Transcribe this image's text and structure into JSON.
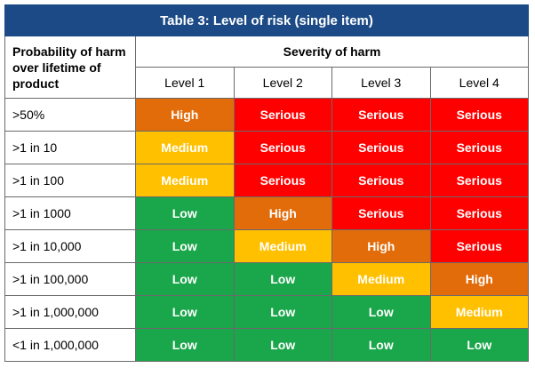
{
  "title": "Table 3: Level of risk (single item)",
  "corner_label": "Probability of harm over lifetime of product",
  "severity_header": "Severity of harm",
  "levels": [
    "Level 1",
    "Level 2",
    "Level 3",
    "Level 4"
  ],
  "colors": {
    "Low": "#1aa64a",
    "Medium": "#ffc000",
    "High": "#e26b0a",
    "Serious": "#ff0000",
    "title_bg": "#1b4a86"
  },
  "rows": [
    {
      "probability": ">50%",
      "cells": [
        "High",
        "Serious",
        "Serious",
        "Serious"
      ]
    },
    {
      "probability": ">1 in 10",
      "cells": [
        "Medium",
        "Serious",
        "Serious",
        "Serious"
      ]
    },
    {
      "probability": ">1 in 100",
      "cells": [
        "Medium",
        "Serious",
        "Serious",
        "Serious"
      ]
    },
    {
      "probability": ">1 in 1000",
      "cells": [
        "Low",
        "High",
        "Serious",
        "Serious"
      ]
    },
    {
      "probability": ">1 in 10,000",
      "cells": [
        "Low",
        "Medium",
        "High",
        "Serious"
      ]
    },
    {
      "probability": ">1 in 100,000",
      "cells": [
        "Low",
        "Low",
        "Medium",
        "High"
      ]
    },
    {
      "probability": ">1 in 1,000,000",
      "cells": [
        "Low",
        "Low",
        "Low",
        "Medium"
      ]
    },
    {
      "probability": "<1 in 1,000,000",
      "cells": [
        "Low",
        "Low",
        "Low",
        "Low"
      ]
    }
  ]
}
